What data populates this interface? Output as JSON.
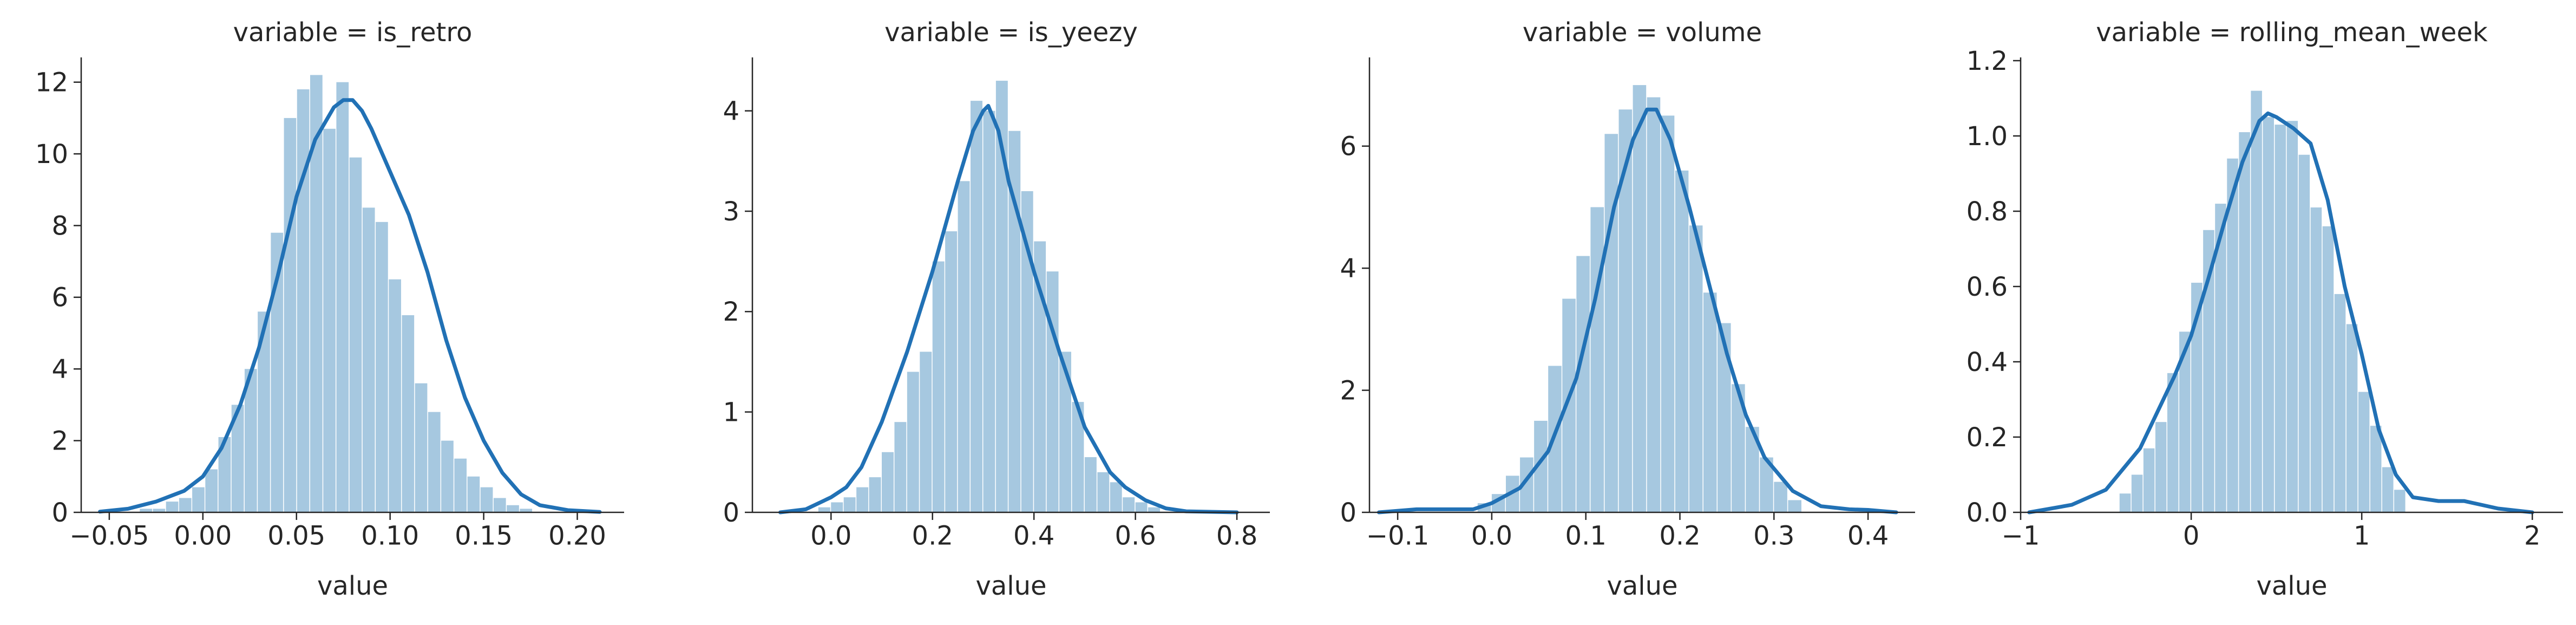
{
  "colors": {
    "bar_fill": "#a6c8e0",
    "kde_line": "#2171b5",
    "axis": "#262626",
    "text": "#262626",
    "background": "#ffffff"
  },
  "chart_data": [
    {
      "type": "bar",
      "title": "variable = is_retro",
      "xlabel": "value",
      "ylabel": "",
      "xlim": [
        -0.065,
        0.225
      ],
      "ylim": [
        0,
        12.6
      ],
      "xticks": [
        -0.05,
        0.0,
        0.05,
        0.1,
        0.15,
        0.2
      ],
      "xtick_labels": [
        "−0.05",
        "0.00",
        "0.05",
        "0.10",
        "0.15",
        "0.20"
      ],
      "yticks": [
        0,
        2,
        4,
        6,
        8,
        10,
        12
      ],
      "ytick_labels": [
        "0",
        "2",
        "4",
        "6",
        "8",
        "10",
        "12"
      ],
      "grid": false,
      "histogram": {
        "bin_edges": [
          -0.0337,
          -0.0267,
          -0.0197,
          -0.0127,
          -0.0057,
          0.0013,
          0.0083,
          0.0153,
          0.0223,
          0.0293,
          0.0363,
          0.0433,
          0.0503,
          0.0573,
          0.0643,
          0.0713,
          0.0783,
          0.0853,
          0.0923,
          0.0993,
          0.1063,
          0.1133,
          0.1203,
          0.1273,
          0.1343,
          0.1413,
          0.1483,
          0.1553,
          0.1623,
          0.1693,
          0.1763
        ],
        "heights": [
          0.1,
          0.1,
          0.3,
          0.4,
          0.7,
          1.2,
          2.1,
          3.0,
          4.0,
          5.6,
          7.8,
          11.0,
          11.8,
          12.2,
          10.7,
          12.0,
          9.9,
          8.5,
          8.1,
          6.5,
          5.5,
          3.6,
          2.8,
          2.0,
          1.5,
          1.0,
          0.7,
          0.4,
          0.2,
          0.1
        ]
      },
      "kde": {
        "x": [
          -0.055,
          -0.04,
          -0.025,
          -0.01,
          0.0,
          0.01,
          0.02,
          0.03,
          0.04,
          0.05,
          0.06,
          0.07,
          0.075,
          0.08,
          0.085,
          0.09,
          0.1,
          0.11,
          0.12,
          0.13,
          0.14,
          0.15,
          0.16,
          0.17,
          0.18,
          0.195,
          0.212
        ],
        "y": [
          0.02,
          0.1,
          0.3,
          0.6,
          1.0,
          1.8,
          3.0,
          4.6,
          6.6,
          8.8,
          10.4,
          11.3,
          11.5,
          11.5,
          11.2,
          10.7,
          9.5,
          8.3,
          6.7,
          4.8,
          3.2,
          2.0,
          1.1,
          0.5,
          0.2,
          0.06,
          0.01
        ]
      }
    },
    {
      "type": "bar",
      "title": "variable = is_yeezy",
      "xlabel": "value",
      "ylabel": "",
      "xlim": [
        -0.155,
        0.865
      ],
      "ylim": [
        0,
        4.5
      ],
      "xticks": [
        0.0,
        0.2,
        0.4,
        0.6,
        0.8
      ],
      "xtick_labels": [
        "0.0",
        "0.2",
        "0.4",
        "0.6",
        "0.8"
      ],
      "yticks": [
        0,
        1,
        2,
        3,
        4
      ],
      "ytick_labels": [
        "0",
        "1",
        "2",
        "3",
        "4"
      ],
      "grid": false,
      "histogram": {
        "bin_edges": [
          -0.025,
          0.0,
          0.025,
          0.05,
          0.075,
          0.1,
          0.125,
          0.15,
          0.175,
          0.2,
          0.225,
          0.25,
          0.275,
          0.3,
          0.325,
          0.35,
          0.375,
          0.4,
          0.425,
          0.45,
          0.475,
          0.5,
          0.525,
          0.55,
          0.575,
          0.6,
          0.625,
          0.65
        ],
        "heights": [
          0.05,
          0.1,
          0.15,
          0.25,
          0.35,
          0.6,
          0.9,
          1.4,
          1.6,
          2.5,
          2.8,
          3.3,
          4.1,
          4.0,
          4.3,
          3.8,
          3.2,
          2.7,
          2.4,
          1.6,
          1.1,
          0.55,
          0.4,
          0.3,
          0.15,
          0.1,
          0.05
        ]
      },
      "kde": {
        "x": [
          -0.1,
          -0.05,
          0.0,
          0.03,
          0.06,
          0.1,
          0.15,
          0.2,
          0.25,
          0.28,
          0.3,
          0.31,
          0.33,
          0.35,
          0.4,
          0.45,
          0.5,
          0.55,
          0.58,
          0.62,
          0.66,
          0.7,
          0.8
        ],
        "y": [
          0.0,
          0.03,
          0.15,
          0.25,
          0.45,
          0.9,
          1.6,
          2.4,
          3.3,
          3.8,
          4.0,
          4.05,
          3.8,
          3.3,
          2.4,
          1.6,
          0.85,
          0.4,
          0.25,
          0.12,
          0.04,
          0.01,
          0.0
        ]
      }
    },
    {
      "type": "bar",
      "title": "variable = volume",
      "xlabel": "value",
      "ylabel": "",
      "xlim": [
        -0.13,
        0.45
      ],
      "ylim": [
        0,
        7.4
      ],
      "xticks": [
        -0.1,
        0.0,
        0.1,
        0.2,
        0.3,
        0.4
      ],
      "xtick_labels": [
        "−0.1",
        "0.0",
        "0.1",
        "0.2",
        "0.3",
        "0.4"
      ],
      "yticks": [
        0,
        2,
        4,
        6
      ],
      "ytick_labels": [
        "0",
        "2",
        "4",
        "6"
      ],
      "grid": false,
      "histogram": {
        "bin_edges": [
          -0.015,
          0.0,
          0.015,
          0.03,
          0.045,
          0.06,
          0.075,
          0.09,
          0.105,
          0.12,
          0.135,
          0.15,
          0.165,
          0.18,
          0.195,
          0.21,
          0.225,
          0.24,
          0.255,
          0.27,
          0.285,
          0.3,
          0.315,
          0.33
        ],
        "heights": [
          0.15,
          0.3,
          0.6,
          0.9,
          1.5,
          2.4,
          3.5,
          4.2,
          5.0,
          6.2,
          6.6,
          7.0,
          6.8,
          6.5,
          5.6,
          4.7,
          3.6,
          3.1,
          2.1,
          1.4,
          0.9,
          0.5,
          0.2
        ]
      },
      "kde": {
        "x": [
          -0.12,
          -0.08,
          -0.05,
          -0.02,
          0.0,
          0.03,
          0.06,
          0.09,
          0.11,
          0.13,
          0.15,
          0.165,
          0.175,
          0.19,
          0.21,
          0.23,
          0.25,
          0.27,
          0.29,
          0.32,
          0.35,
          0.38,
          0.4,
          0.43
        ],
        "y": [
          0.0,
          0.05,
          0.05,
          0.05,
          0.15,
          0.4,
          1.0,
          2.2,
          3.5,
          5.0,
          6.1,
          6.6,
          6.6,
          6.1,
          5.0,
          3.8,
          2.6,
          1.6,
          0.9,
          0.35,
          0.1,
          0.05,
          0.04,
          0.0
        ]
      }
    },
    {
      "type": "bar",
      "title": "variable = rolling_mean_week",
      "xlabel": "value",
      "ylabel": "",
      "xlim": [
        -1.0,
        2.18
      ],
      "ylim": [
        0,
        1.2
      ],
      "xticks": [
        -1,
        0,
        1,
        2
      ],
      "xtick_labels": [
        "−1",
        "0",
        "1",
        "2"
      ],
      "yticks": [
        0.0,
        0.2,
        0.4,
        0.6,
        0.8,
        1.0,
        1.2
      ],
      "ytick_labels": [
        "0.0",
        "0.2",
        "0.4",
        "0.6",
        "0.8",
        "1.0",
        "1.2"
      ],
      "grid": false,
      "histogram": {
        "bin_edges": [
          -0.42,
          -0.35,
          -0.28,
          -0.21,
          -0.14,
          -0.07,
          0.0,
          0.07,
          0.14,
          0.21,
          0.28,
          0.35,
          0.42,
          0.49,
          0.56,
          0.63,
          0.7,
          0.77,
          0.84,
          0.91,
          0.98,
          1.05,
          1.12,
          1.19,
          1.26
        ],
        "heights": [
          0.05,
          0.1,
          0.17,
          0.24,
          0.37,
          0.48,
          0.61,
          0.75,
          0.82,
          0.94,
          1.01,
          1.12,
          1.05,
          1.03,
          1.04,
          0.95,
          0.81,
          0.76,
          0.58,
          0.5,
          0.32,
          0.23,
          0.12,
          0.06
        ]
      },
      "kde": {
        "x": [
          -0.95,
          -0.7,
          -0.5,
          -0.3,
          -0.1,
          0.0,
          0.1,
          0.2,
          0.3,
          0.4,
          0.45,
          0.5,
          0.6,
          0.7,
          0.8,
          0.9,
          1.0,
          1.1,
          1.2,
          1.3,
          1.45,
          1.6,
          1.8,
          2.0
        ],
        "y": [
          0.0,
          0.02,
          0.06,
          0.17,
          0.36,
          0.47,
          0.62,
          0.78,
          0.93,
          1.04,
          1.06,
          1.05,
          1.02,
          0.98,
          0.83,
          0.6,
          0.42,
          0.22,
          0.1,
          0.04,
          0.03,
          0.03,
          0.01,
          0.0
        ]
      }
    }
  ]
}
